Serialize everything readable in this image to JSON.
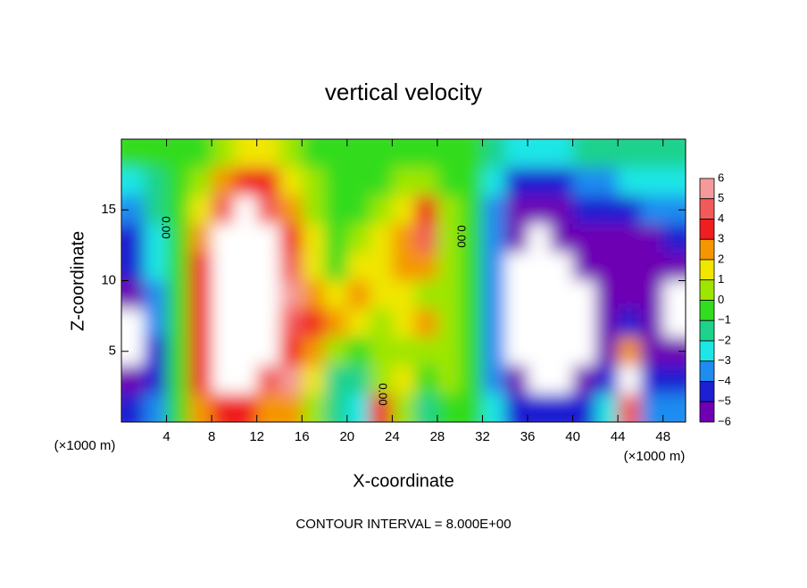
{
  "chart_data": {
    "type": "contour",
    "title": "vertical velocity",
    "x_label": "X-coordinate",
    "y_label": "Z-coordinate",
    "x_unit": "(×1000 m)",
    "y_unit": "(×1000 m)",
    "footer": "CONTOUR INTERVAL = 8.000E+00",
    "xlim": [
      0,
      50
    ],
    "ylim": [
      0,
      20
    ],
    "xticks": [
      4,
      8,
      12,
      16,
      20,
      24,
      28,
      32,
      36,
      40,
      44,
      48
    ],
    "yticks": [
      5,
      10,
      15
    ],
    "x": [
      1,
      3,
      5,
      7,
      9,
      11,
      13,
      15,
      17,
      19,
      21,
      23,
      25,
      27,
      29,
      31,
      33,
      35,
      37,
      39,
      41,
      43,
      45,
      47,
      49
    ],
    "y": [
      19,
      17,
      15,
      13,
      11,
      9,
      7,
      5,
      3,
      1
    ],
    "z": [
      [
        0,
        0,
        0,
        0,
        1,
        2,
        2,
        1,
        0,
        0,
        0,
        0,
        0,
        0,
        0,
        0,
        -1,
        -2,
        -2,
        -2,
        -1,
        -1,
        -1,
        -1,
        -1
      ],
      [
        -2,
        -1,
        0,
        1,
        3,
        4,
        4,
        2,
        1,
        0,
        0,
        0,
        1,
        1,
        0,
        0,
        -2,
        -4,
        -4,
        -4,
        -3,
        -3,
        -2,
        -2,
        -2
      ],
      [
        -3,
        -1,
        0,
        2,
        5,
        9,
        5,
        3,
        1,
        0,
        0,
        1,
        2,
        4,
        1,
        0,
        -3,
        -5,
        -5,
        -5,
        -4,
        -4,
        -4,
        -3,
        -3
      ],
      [
        -4,
        -2,
        0,
        3,
        9,
        9,
        9,
        4,
        2,
        0,
        1,
        2,
        3,
        5,
        1,
        0,
        -3,
        -6,
        -9,
        -6,
        -5,
        -5,
        -5,
        -5,
        -4
      ],
      [
        -4,
        -2,
        0,
        4,
        9,
        9,
        9,
        5,
        2,
        0,
        2,
        2,
        3,
        3,
        1,
        0,
        -3,
        -9,
        -9,
        -9,
        -6,
        -5,
        -5,
        -5,
        -5
      ],
      [
        -5,
        -3,
        0,
        4,
        9,
        9,
        9,
        6,
        3,
        2,
        3,
        2,
        2,
        1,
        1,
        0,
        -3,
        -9,
        -9,
        -9,
        -9,
        -6,
        -5,
        -6,
        -9
      ],
      [
        -9,
        -3,
        0,
        4,
        9,
        9,
        9,
        5,
        4,
        3,
        2,
        1,
        2,
        3,
        1,
        0,
        -3,
        -9,
        -9,
        -9,
        -9,
        -5,
        -4,
        -6,
        -9
      ],
      [
        -9,
        -4,
        0,
        4,
        9,
        9,
        9,
        4,
        3,
        1,
        0,
        1,
        1,
        1,
        1,
        0,
        -3,
        -9,
        -9,
        -9,
        -9,
        -5,
        3,
        -5,
        -6
      ],
      [
        -5,
        -4,
        0,
        4,
        9,
        9,
        5,
        6,
        2,
        -1,
        -1,
        1,
        2,
        0,
        1,
        0,
        -3,
        -6,
        -9,
        -9,
        -6,
        -4,
        9,
        -4,
        -4
      ],
      [
        -4,
        -3,
        0,
        3,
        4,
        4,
        3,
        3,
        1,
        -1,
        -2,
        4,
        1,
        -1,
        0,
        0,
        -2,
        -4,
        -4,
        -4,
        -4,
        -2,
        5,
        -3,
        -3
      ]
    ],
    "colorbar_ticks": [
      6,
      5,
      4,
      3,
      2,
      1,
      0,
      {
        "value": -1,
        "label": "−1"
      },
      {
        "value": -2,
        "label": "−2"
      },
      {
        "value": -3,
        "label": "−3"
      },
      {
        "value": -4,
        "label": "−4"
      },
      {
        "value": -5,
        "label": "−5"
      },
      {
        "value": -6,
        "label": "−6"
      }
    ],
    "colors": [
      "#f59a9a",
      "#f25a5a",
      "#f01e1e",
      "#f59600",
      "#f0e600",
      "#9ee600",
      "#32dc1e",
      "#1ed28c",
      "#1ee6e6",
      "#1e8cf0",
      "#1e1ed2",
      "#6e00b4"
    ],
    "annotations": [
      "0.00",
      "0.00",
      "0.00"
    ]
  }
}
